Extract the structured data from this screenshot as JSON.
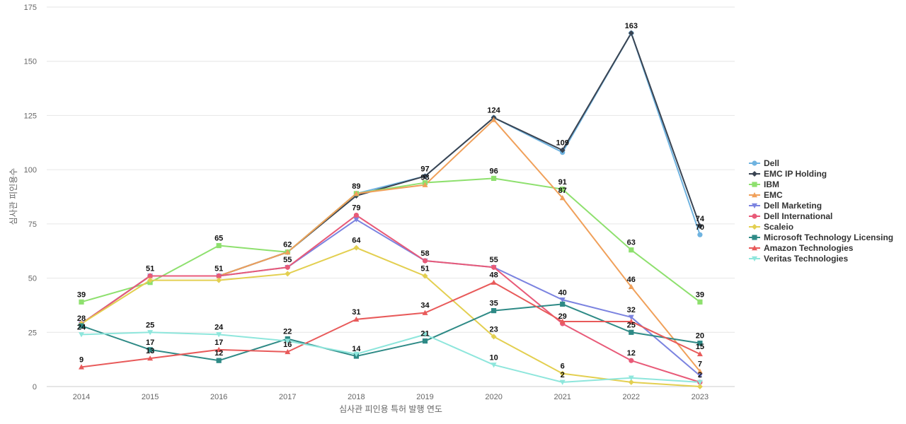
{
  "chart_data": {
    "type": "line",
    "title": "",
    "xlabel": "심사관 피인용 특허 발행 연도",
    "ylabel": "심사관 피인용수",
    "x": [
      2014,
      2015,
      2016,
      2017,
      2018,
      2019,
      2020,
      2021,
      2022,
      2023
    ],
    "ylim": [
      0,
      175
    ],
    "yticks": [
      0,
      25,
      50,
      75,
      100,
      125,
      150,
      175
    ],
    "grid": true,
    "legend_position": "right",
    "series": [
      {
        "name": "Dell",
        "color": "#6fb3e0",
        "marker": "circle",
        "values": [
          29,
          51,
          51,
          62,
          89,
          97,
          124,
          108,
          163,
          70
        ],
        "labels": [
          false,
          false,
          false,
          false,
          true,
          false,
          false,
          false,
          false,
          true
        ]
      },
      {
        "name": "EMC IP Holding",
        "color": "#3a4452",
        "marker": "diamond",
        "values": [
          29,
          51,
          51,
          62,
          88,
          97,
          124,
          109,
          163,
          74
        ],
        "labels": [
          false,
          false,
          false,
          false,
          false,
          true,
          true,
          true,
          true,
          true
        ]
      },
      {
        "name": "IBM",
        "color": "#8ee06e",
        "marker": "square",
        "values": [
          39,
          48,
          65,
          62,
          89,
          94,
          96,
          91,
          63,
          39
        ],
        "labels": [
          true,
          false,
          true,
          true,
          false,
          false,
          true,
          true,
          true,
          true
        ]
      },
      {
        "name": "EMC",
        "color": "#f0a05a",
        "marker": "triangle",
        "values": [
          29,
          51,
          51,
          62,
          89,
          93,
          123,
          87,
          46,
          7
        ],
        "labels": [
          false,
          false,
          false,
          false,
          false,
          true,
          false,
          true,
          true,
          true
        ]
      },
      {
        "name": "Dell Marketing",
        "color": "#7b83e0",
        "marker": "triangle-down",
        "values": [
          29,
          51,
          51,
          55,
          77,
          58,
          55,
          40,
          32,
          5
        ],
        "labels": [
          false,
          false,
          false,
          false,
          false,
          false,
          false,
          true,
          true,
          false
        ]
      },
      {
        "name": "Dell International",
        "color": "#e85a78",
        "marker": "circle",
        "values": [
          29,
          51,
          51,
          55,
          79,
          58,
          55,
          29,
          12,
          2
        ],
        "labels": [
          false,
          true,
          true,
          true,
          true,
          true,
          true,
          true,
          true,
          true
        ]
      },
      {
        "name": "Scaleio",
        "color": "#e3cf50",
        "marker": "diamond",
        "values": [
          29,
          49,
          49,
          52,
          64,
          51,
          23,
          6,
          2,
          0
        ],
        "labels": [
          false,
          false,
          false,
          false,
          true,
          true,
          true,
          true,
          false,
          false
        ]
      },
      {
        "name": "Microsoft Technology Licensing",
        "color": "#2e8a86",
        "marker": "square",
        "values": [
          28,
          17,
          12,
          22,
          14,
          21,
          35,
          38,
          25,
          20
        ],
        "labels": [
          true,
          true,
          true,
          true,
          true,
          true,
          true,
          false,
          true,
          true
        ]
      },
      {
        "name": "Amazon Technologies",
        "color": "#e85a5a",
        "marker": "triangle",
        "values": [
          9,
          13,
          17,
          16,
          31,
          34,
          48,
          30,
          30,
          15
        ],
        "labels": [
          true,
          true,
          true,
          true,
          true,
          true,
          true,
          false,
          false,
          true
        ]
      },
      {
        "name": "Veritas Technologies",
        "color": "#8ee6dc",
        "marker": "triangle-down",
        "values": [
          24,
          25,
          24,
          21,
          15,
          24,
          10,
          2,
          4,
          2
        ],
        "labels": [
          true,
          true,
          true,
          false,
          false,
          false,
          true,
          true,
          false,
          false
        ]
      }
    ]
  }
}
